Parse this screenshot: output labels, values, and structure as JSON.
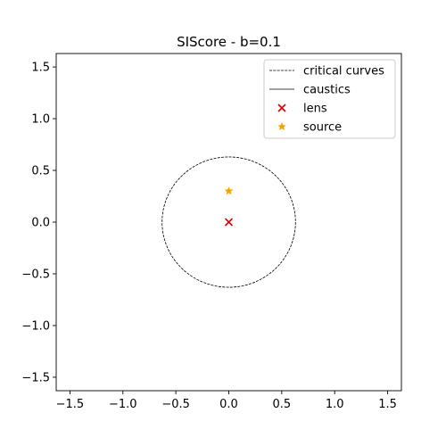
{
  "chart_data": {
    "type": "scatter",
    "title": "SIScore - b=0.1",
    "xlabel": "",
    "ylabel": "",
    "xlim": [
      -1.63,
      1.63
    ],
    "ylim": [
      -1.63,
      1.63
    ],
    "x_ticks": [
      -1.5,
      -1.0,
      -0.5,
      0.0,
      0.5,
      1.0,
      1.5
    ],
    "y_ticks": [
      -1.5,
      -1.0,
      -0.5,
      0.0,
      0.5,
      1.0,
      1.5
    ],
    "x_tick_labels": [
      "−1.5",
      "−1.0",
      "−0.5",
      "0.0",
      "0.5",
      "1.0",
      "1.5"
    ],
    "y_tick_labels": [
      "−1.5",
      "−1.0",
      "−0.5",
      "0.0",
      "0.5",
      "1.0",
      "1.5"
    ],
    "grid": false,
    "legend_position": "top-right",
    "series": [
      {
        "name": "critical curves",
        "kind": "circle",
        "center": [
          0.0,
          0.0
        ],
        "radius": 0.63,
        "style": "dashed",
        "color": "#000000"
      },
      {
        "name": "caustics",
        "kind": "point",
        "points": [
          [
            0.0,
            0.0
          ]
        ],
        "style": "solid",
        "color": "#000000"
      },
      {
        "name": "lens",
        "kind": "marker",
        "marker": "x",
        "points": [
          [
            0.0,
            0.0
          ]
        ],
        "color": "#e00000"
      },
      {
        "name": "source",
        "kind": "marker",
        "marker": "star",
        "points": [
          [
            0.0,
            0.3
          ]
        ],
        "color": "#f5a300"
      }
    ]
  }
}
